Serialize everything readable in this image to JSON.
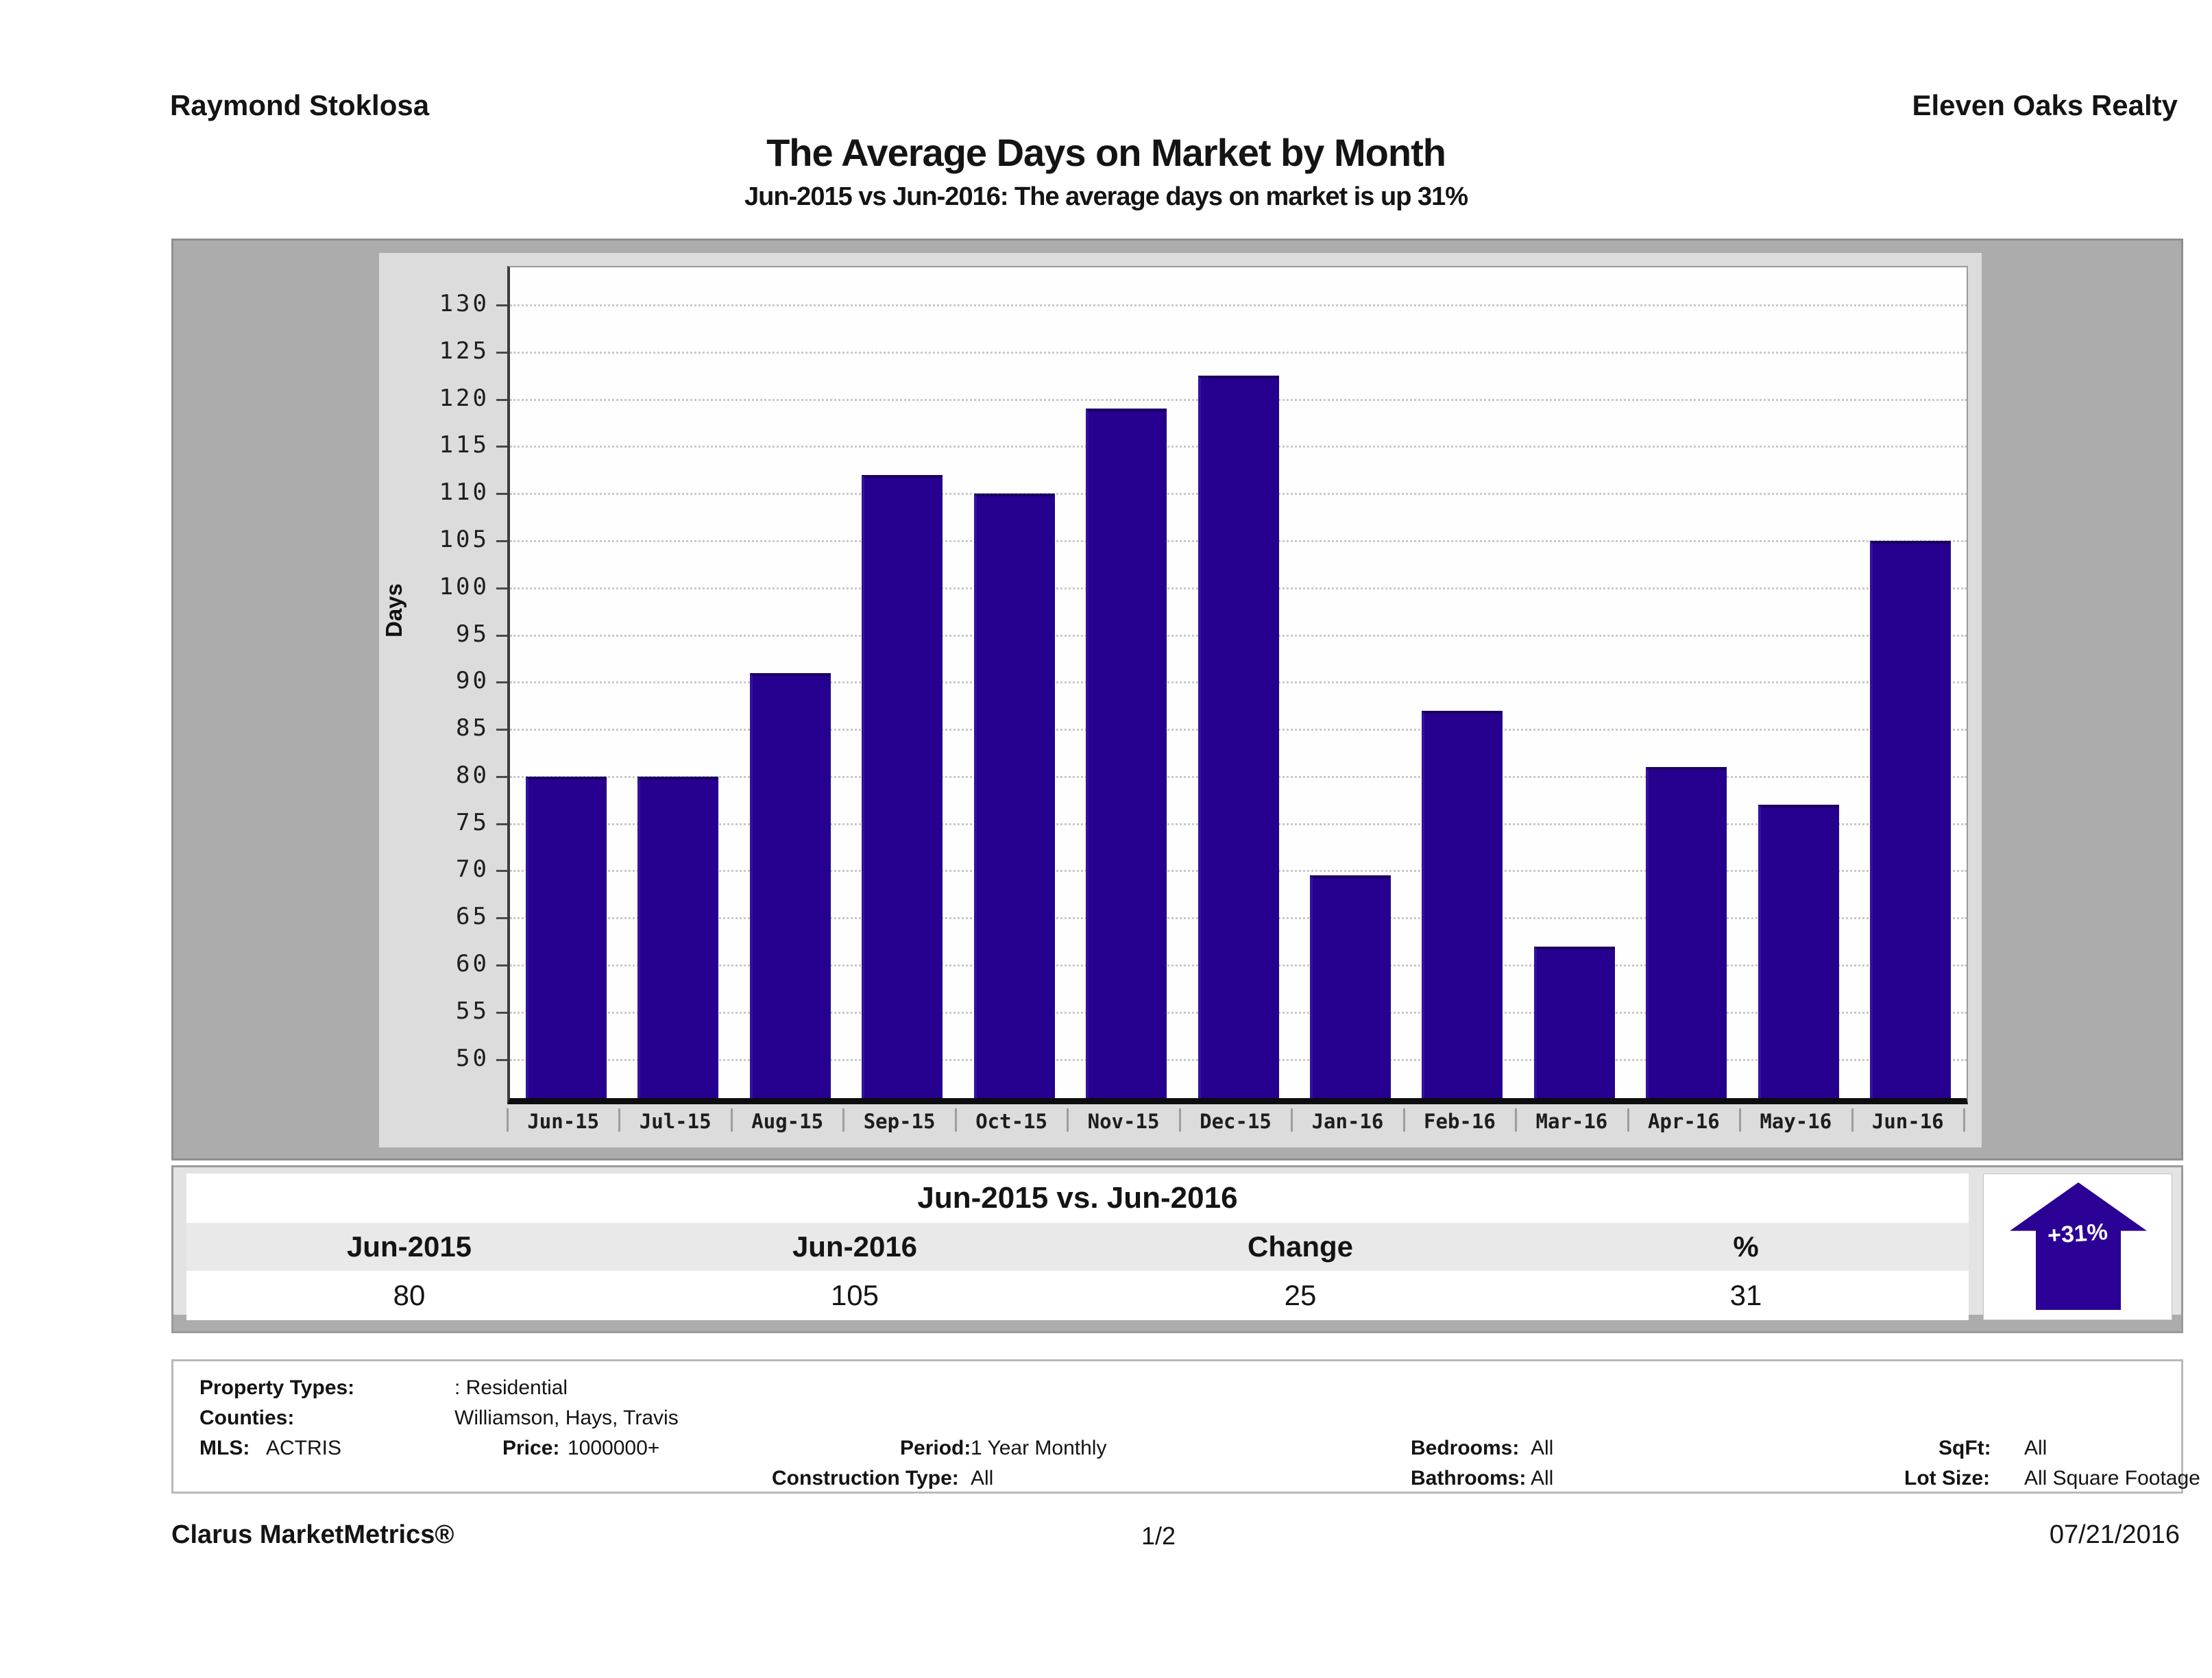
{
  "header": {
    "left": "Raymond Stoklosa",
    "right": "Eleven Oaks Realty"
  },
  "title": "The Average Days on Market by Month",
  "subtitle": "Jun-2015 vs Jun-2016: The average days on market is up 31%",
  "chart_data": {
    "type": "bar",
    "title": "The Average Days on Market by Month",
    "xlabel": "",
    "ylabel": "Days",
    "categories": [
      "Jun-15",
      "Jul-15",
      "Aug-15",
      "Sep-15",
      "Oct-15",
      "Nov-15",
      "Dec-15",
      "Jan-16",
      "Feb-16",
      "Mar-16",
      "Apr-16",
      "May-16",
      "Jun-16"
    ],
    "values": [
      80,
      80,
      91,
      112,
      110,
      119,
      122.5,
      69.5,
      87,
      62,
      81,
      77,
      105
    ],
    "yticks": [
      50,
      55,
      60,
      65,
      70,
      75,
      80,
      85,
      90,
      95,
      100,
      105,
      110,
      115,
      120,
      125,
      130
    ],
    "ylim": [
      45.9,
      134
    ],
    "grid": "horizontal-dotted",
    "legend": "none",
    "bar_color": "#26008e"
  },
  "comparison_table": {
    "title": "Jun-2015 vs. Jun-2016",
    "columns": [
      "Jun-2015",
      "Jun-2016",
      "Change",
      "%"
    ],
    "values": [
      "80",
      "105",
      "25",
      "31"
    ],
    "arrow": {
      "direction": "up",
      "label": "+31%",
      "color": "#2b0195"
    }
  },
  "filters": {
    "property_types_label": "Property Types:",
    "property_types_value": ": Residential",
    "counties_label": "Counties:",
    "counties_value": "Williamson, Hays, Travis",
    "mls_label": "MLS:",
    "mls_value": "ACTRIS",
    "price_label": "Price:",
    "price_value": "1000000+",
    "period_label": "Period:",
    "period_value": "1 Year Monthly",
    "construction_label": "Construction Type:",
    "construction_value": "All",
    "bedrooms_label": "Bedrooms:",
    "bedrooms_value": "All",
    "bathrooms_label": "Bathrooms:",
    "bathrooms_value": "All",
    "sqft_label": "SqFt:",
    "sqft_value": "All",
    "lot_size_label": "Lot Size:",
    "lot_size_value": "All Square Footage"
  },
  "footer": {
    "brand": "Clarus MarketMetrics®",
    "page": "1/2",
    "date": "07/21/2016"
  }
}
